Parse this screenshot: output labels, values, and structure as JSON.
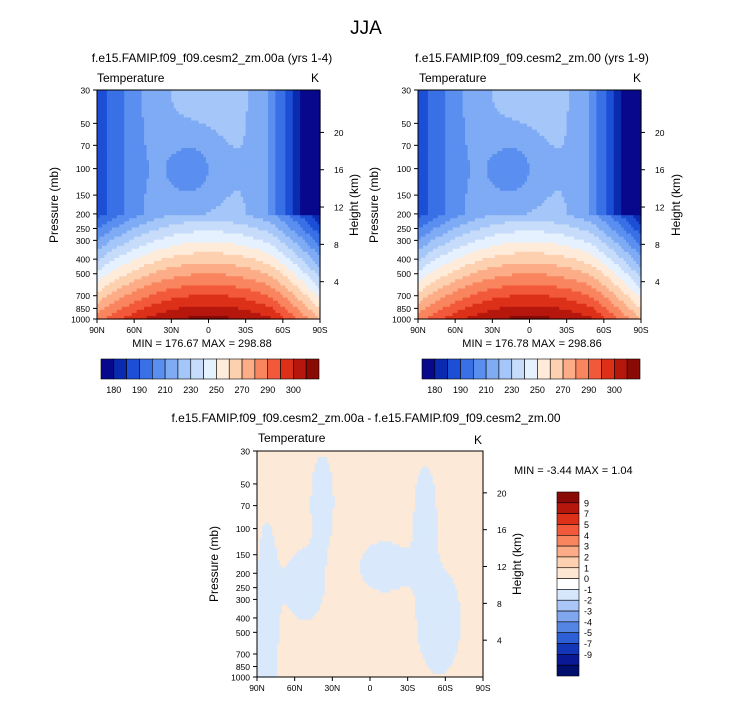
{
  "figure": {
    "title": "JJA"
  },
  "chart_data": [
    {
      "type": "heatmap",
      "title": "f.e15.FAMIP.f09_f09.cesm2_zm.00a (yrs 1-4)",
      "variable_label": "Temperature",
      "units": "K",
      "xlabel": "",
      "ylabel": "Pressure (mb)",
      "y2label": "Height (km)",
      "x_ticks": [
        "90N",
        "60N",
        "30N",
        "0",
        "30S",
        "60S",
        "90S"
      ],
      "y_ticks": [
        "30",
        "50",
        "70",
        "100",
        "150",
        "200",
        "250",
        "300",
        "400",
        "500",
        "700",
        "850",
        "1000"
      ],
      "y_scale": "log",
      "y2_ticks": [
        "20",
        "16",
        "12",
        "8",
        "4"
      ],
      "stats_text": "MIN = 176.67   MAX = 298.88",
      "min": 176.67,
      "max": 298.88,
      "colorbar_labels": [
        "180",
        "190",
        "210",
        "230",
        "250",
        "270",
        "290",
        "300"
      ],
      "colorbar_colors": [
        "#08088c",
        "#0a2bb0",
        "#1c4fd6",
        "#3a70e6",
        "#5a8ff0",
        "#7fabf5",
        "#a4c6f8",
        "#c6dcfa",
        "#e6f1ff",
        "#ffebd9",
        "#fdd0b0",
        "#fcac86",
        "#f9855f",
        "#f2593a",
        "#dd3019",
        "#b6170d",
        "#8a0a06"
      ]
    },
    {
      "type": "heatmap",
      "title": "f.e15.FAMIP.f09_f09.cesm2_zm.00 (yrs 1-9)",
      "variable_label": "Temperature",
      "units": "K",
      "xlabel": "",
      "ylabel": "Pressure (mb)",
      "y2label": "Height (km)",
      "x_ticks": [
        "90N",
        "60N",
        "30N",
        "0",
        "30S",
        "60S",
        "90S"
      ],
      "y_ticks": [
        "30",
        "50",
        "70",
        "100",
        "150",
        "200",
        "250",
        "300",
        "400",
        "500",
        "700",
        "850",
        "1000"
      ],
      "y_scale": "log",
      "y2_ticks": [
        "20",
        "16",
        "12",
        "8",
        "4"
      ],
      "stats_text": "MIN = 176.78   MAX = 298.86",
      "min": 176.78,
      "max": 298.86,
      "colorbar_labels": [
        "180",
        "190",
        "210",
        "230",
        "250",
        "270",
        "290",
        "300"
      ],
      "colorbar_colors": [
        "#08088c",
        "#0a2bb0",
        "#1c4fd6",
        "#3a70e6",
        "#5a8ff0",
        "#7fabf5",
        "#a4c6f8",
        "#c6dcfa",
        "#e6f1ff",
        "#ffebd9",
        "#fdd0b0",
        "#fcac86",
        "#f9855f",
        "#f2593a",
        "#dd3019",
        "#b6170d",
        "#8a0a06"
      ]
    },
    {
      "type": "heatmap",
      "title": "f.e15.FAMIP.f09_f09.cesm2_zm.00a - f.e15.FAMIP.f09_f09.cesm2_zm.00",
      "variable_label": "Temperature",
      "units": "K",
      "xlabel": "",
      "ylabel": "Pressure (mb)",
      "y2label": "Height (km)",
      "x_ticks": [
        "90N",
        "60N",
        "30N",
        "0",
        "30S",
        "60S",
        "90S"
      ],
      "y_ticks": [
        "30",
        "50",
        "70",
        "100",
        "150",
        "200",
        "250",
        "300",
        "400",
        "500",
        "700",
        "850",
        "1000"
      ],
      "y_scale": "log",
      "y2_ticks": [
        "20",
        "16",
        "12",
        "8",
        "4"
      ],
      "stats_text": "MIN = -3.44  MAX =  1.04",
      "min": -3.44,
      "max": 1.04,
      "colorbar_labels": [
        "9",
        "7",
        "5",
        "4",
        "3",
        "2",
        "1",
        "0",
        "-1",
        "-2",
        "-3",
        "-4",
        "-5",
        "-7",
        "-9"
      ],
      "colorbar_colors": [
        "#8a0a06",
        "#b6170d",
        "#dd3019",
        "#f2593a",
        "#f9855f",
        "#fcac86",
        "#fdd0b0",
        "#fde6d2",
        "#ffffff",
        "#d6e6fb",
        "#a9c6f6",
        "#7fa6ee",
        "#5585e4",
        "#2d5fd6",
        "#1436b8",
        "#0a1a96",
        "#000e6e"
      ],
      "field_colors": {
        "positive": "#fde9d7",
        "negative": "#d9e9fb"
      }
    }
  ]
}
